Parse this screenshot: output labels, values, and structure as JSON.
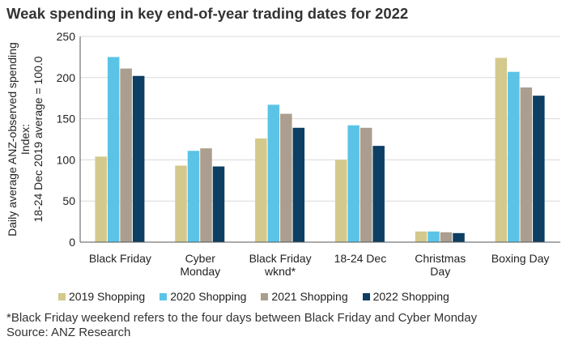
{
  "chart_data": {
    "type": "bar",
    "title": "Weak spending in key end-of-year trading dates for 2022",
    "ylabel_lines": [
      "Daily average ANZ-observed spending",
      "Index:",
      "18-24 Dec 2019 average = 100.0"
    ],
    "xlabel": "",
    "ylim": [
      0,
      250
    ],
    "yticks": [
      0,
      50,
      100,
      150,
      200,
      250
    ],
    "grid": true,
    "legend_position": "bottom",
    "categories": [
      [
        "Black Friday"
      ],
      [
        "Cyber",
        "Monday"
      ],
      [
        "Black Friday",
        "wknd*"
      ],
      [
        "18-24 Dec"
      ],
      [
        "Christmas",
        "Day"
      ],
      [
        "Boxing Day"
      ]
    ],
    "series": [
      {
        "name": "2019 Shopping",
        "color": "#d4c98c",
        "values": [
          104,
          93,
          126,
          100,
          13,
          224
        ]
      },
      {
        "name": "2020 Shopping",
        "color": "#5bc4e6",
        "values": [
          225,
          111,
          167,
          142,
          13,
          207
        ]
      },
      {
        "name": "2021 Shopping",
        "color": "#ab9e8e",
        "values": [
          211,
          114,
          156,
          139,
          12,
          188
        ]
      },
      {
        "name": "2022 Shopping",
        "color": "#0d3e63",
        "values": [
          202,
          92,
          139,
          117,
          11,
          178
        ]
      }
    ]
  },
  "footnote": {
    "line1": "*Black Friday weekend refers to the four days between Black Friday and Cyber Monday",
    "line2": "Source: ANZ Research"
  }
}
